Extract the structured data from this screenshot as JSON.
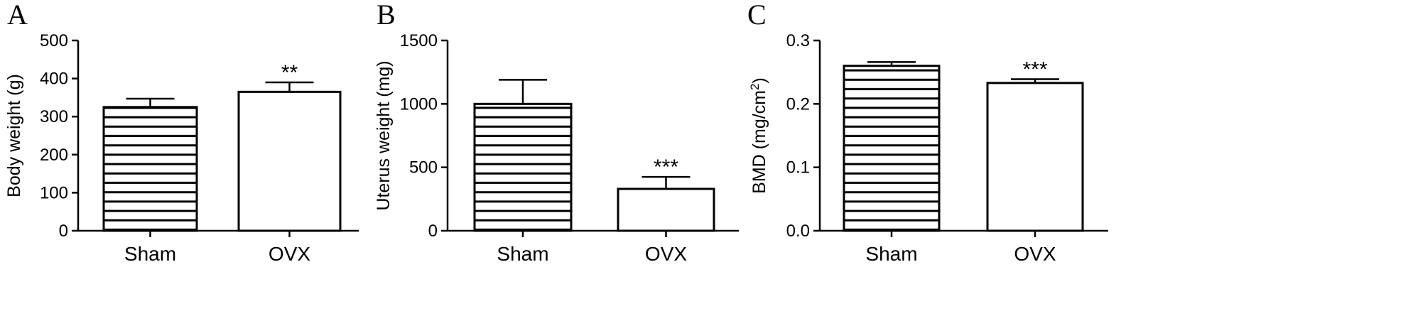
{
  "chart_data": [
    {
      "panel": "A",
      "type": "bar",
      "categories": [
        "Sham",
        "OVX"
      ],
      "values": [
        325,
        365
      ],
      "errors": [
        22,
        25
      ],
      "fills": [
        "hatched",
        "white"
      ],
      "significance": [
        "",
        "**"
      ],
      "ylabel": "Body weight (g)",
      "ylim": [
        0,
        500
      ],
      "yticks": [
        0,
        100,
        200,
        300,
        400,
        500
      ],
      "ytick_labels": [
        "0",
        "100",
        "200",
        "300",
        "400",
        "500"
      ],
      "grid": false
    },
    {
      "panel": "B",
      "type": "bar",
      "categories": [
        "Sham",
        "OVX"
      ],
      "values": [
        1000,
        330
      ],
      "errors": [
        190,
        95
      ],
      "fills": [
        "hatched",
        "white"
      ],
      "significance": [
        "",
        "***"
      ],
      "ylabel": "Uterus weight (mg)",
      "ylim": [
        0,
        1500
      ],
      "yticks": [
        0,
        500,
        1000,
        1500
      ],
      "ytick_labels": [
        "0",
        "500",
        "1000",
        "1500"
      ],
      "grid": false
    },
    {
      "panel": "C",
      "type": "bar",
      "categories": [
        "Sham",
        "OVX"
      ],
      "values": [
        0.26,
        0.233
      ],
      "errors": [
        0.006,
        0.006
      ],
      "fills": [
        "hatched",
        "white"
      ],
      "significance": [
        "",
        "***"
      ],
      "ylabel": "BMD (mg/cm",
      "ylabel_superscript": "2",
      "ylabel_suffix": ")",
      "ylim": [
        0,
        0.3
      ],
      "yticks": [
        0,
        0.1,
        0.2,
        0.3
      ],
      "ytick_labels": [
        "0.0",
        "0.1",
        "0.2",
        "0.3"
      ],
      "grid": false
    }
  ]
}
